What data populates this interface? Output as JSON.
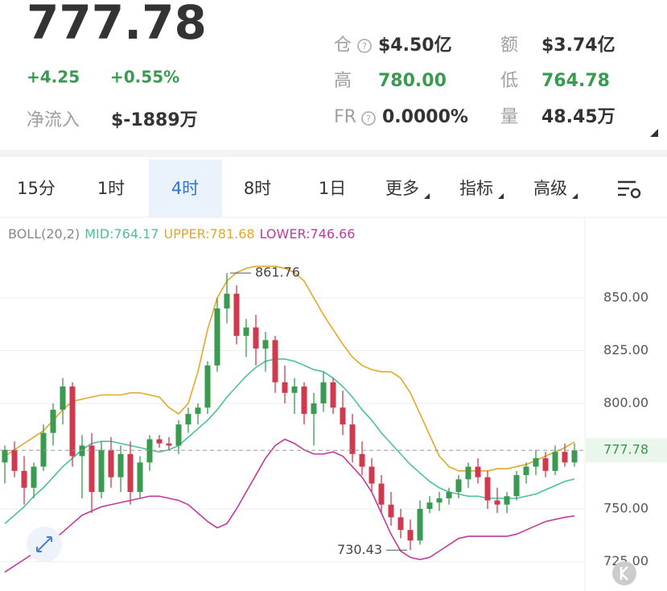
{
  "header": {
    "price": "777.78",
    "change": "+4.25",
    "change_pct": "+0.55%",
    "netflow_label": "净流入",
    "netflow": "$-1889万",
    "stats": [
      {
        "label": "仓",
        "value": "$4.50亿"
      },
      {
        "label": "额",
        "value": "$3.74亿"
      },
      {
        "label": "高",
        "value": "780.00"
      },
      {
        "label": "低",
        "value": "764.78"
      },
      {
        "label": "FR",
        "value": "0.0000%"
      },
      {
        "label": "量",
        "value": "48.45万"
      }
    ]
  },
  "tabs": [
    "15分",
    "1时",
    "4时",
    "8时",
    "1日",
    "更多",
    "指标",
    "高级"
  ],
  "indicator": {
    "name": "BOLL(20,2)",
    "items": [
      {
        "text": "MID:764.17",
        "color": "#4cbf9c"
      },
      {
        "text": "UPPER:781.68",
        "color": "#e0a92a"
      },
      {
        "text": "LOWER:746.66",
        "color": "#c2399a"
      }
    ]
  },
  "chart_data": {
    "type": "candlestick",
    "open": [
      772,
      778,
      768,
      760,
      770,
      786,
      797,
      808,
      775,
      780,
      758,
      778,
      765,
      776,
      758,
      772,
      783,
      781,
      780,
      790,
      795,
      798,
      818,
      845,
      852,
      832,
      836,
      826,
      830,
      810,
      805,
      808,
      795,
      800,
      810,
      798,
      790,
      776,
      770,
      762,
      752,
      746,
      740,
      735,
      750,
      753,
      755,
      758,
      764,
      770,
      765,
      754,
      752,
      756,
      766,
      770,
      774,
      768,
      777,
      772
    ],
    "high": [
      780,
      782,
      775,
      772,
      790,
      800,
      812,
      810,
      785,
      786,
      782,
      784,
      780,
      782,
      775,
      785,
      785,
      784,
      792,
      798,
      800,
      820,
      850,
      861.76,
      856,
      840,
      842,
      834,
      832,
      818,
      812,
      810,
      805,
      815,
      812,
      806,
      795,
      782,
      774,
      766,
      758,
      750,
      745,
      754,
      756,
      758,
      760,
      766,
      772,
      774,
      768,
      760,
      758,
      768,
      772,
      778,
      777,
      780,
      781,
      781
    ],
    "low": [
      762,
      765,
      752,
      755,
      768,
      780,
      790,
      770,
      755,
      748,
      755,
      760,
      758,
      752,
      755,
      768,
      779,
      778,
      776,
      786,
      790,
      795,
      815,
      838,
      828,
      822,
      818,
      815,
      805,
      800,
      795,
      790,
      780,
      796,
      795,
      785,
      772,
      766,
      758,
      748,
      742,
      736,
      730.43,
      733,
      748,
      749,
      752,
      755,
      760,
      762,
      750,
      748,
      748,
      754,
      762,
      766,
      765,
      766,
      770,
      770
    ],
    "close": [
      778,
      768,
      760,
      770,
      786,
      797,
      808,
      775,
      780,
      758,
      778,
      765,
      776,
      758,
      772,
      783,
      781,
      780,
      790,
      795,
      798,
      818,
      845,
      852,
      832,
      836,
      826,
      830,
      810,
      805,
      808,
      795,
      800,
      810,
      798,
      790,
      776,
      770,
      762,
      752,
      746,
      740,
      735,
      750,
      753,
      755,
      758,
      764,
      770,
      765,
      754,
      752,
      756,
      766,
      770,
      774,
      768,
      777,
      772,
      777.78
    ],
    "bands": {
      "upper": {
        "color": "#e0a92a",
        "values": [
          775,
          778,
          781,
          784,
          787,
          792,
          797,
          801,
          802,
          803,
          804,
          804,
          804,
          805,
          805,
          804,
          803,
          798,
          795,
          800,
          815,
          835,
          850,
          858,
          862,
          864,
          865,
          865,
          865,
          864,
          862,
          858,
          850,
          842,
          835,
          828,
          822,
          818,
          816,
          815,
          815,
          812,
          805,
          795,
          785,
          775,
          770,
          768,
          768,
          768,
          768,
          769,
          769,
          770,
          771,
          773,
          775,
          777,
          779,
          781.68
        ]
      },
      "mid": {
        "color": "#4cbf9c",
        "values": [
          743,
          747,
          751,
          756,
          760,
          765,
          770,
          774,
          778,
          781,
          782,
          782,
          781,
          780,
          779,
          778,
          777,
          778,
          780,
          784,
          788,
          792,
          797,
          803,
          808,
          813,
          817,
          820,
          821,
          821,
          820,
          818,
          816,
          815,
          812,
          808,
          803,
          797,
          792,
          786,
          781,
          776,
          771,
          767,
          763,
          760,
          758,
          757,
          756,
          756,
          755,
          755,
          755,
          755,
          756,
          757,
          759,
          761,
          763,
          764.17
        ]
      },
      "lower": {
        "color": "#c2399a",
        "values": [
          720,
          723,
          726,
          729,
          731,
          735,
          739,
          743,
          747,
          749,
          751,
          752,
          753,
          754,
          755,
          756,
          756,
          755,
          754,
          752,
          748,
          744,
          741,
          743,
          750,
          758,
          766,
          774,
          780,
          783,
          781,
          778,
          776,
          776,
          777,
          775,
          770,
          765,
          758,
          748,
          738,
          730,
          727,
          726,
          727,
          730,
          733,
          736,
          737,
          737,
          737,
          737,
          737,
          738,
          740,
          742,
          744,
          745,
          746,
          746.66
        ]
      }
    },
    "up_color": "#3a9a4f",
    "down_color": "#d0394e",
    "ylim": [
      714.5,
      874.8
    ],
    "yticks": [
      {
        "value": 725,
        "label": "725.00"
      },
      {
        "value": 750,
        "label": "750.00"
      },
      {
        "value": 800,
        "label": "800.00"
      },
      {
        "value": 825,
        "label": "825.00"
      },
      {
        "value": 850,
        "label": "850.00"
      }
    ],
    "grid": true
  }
}
